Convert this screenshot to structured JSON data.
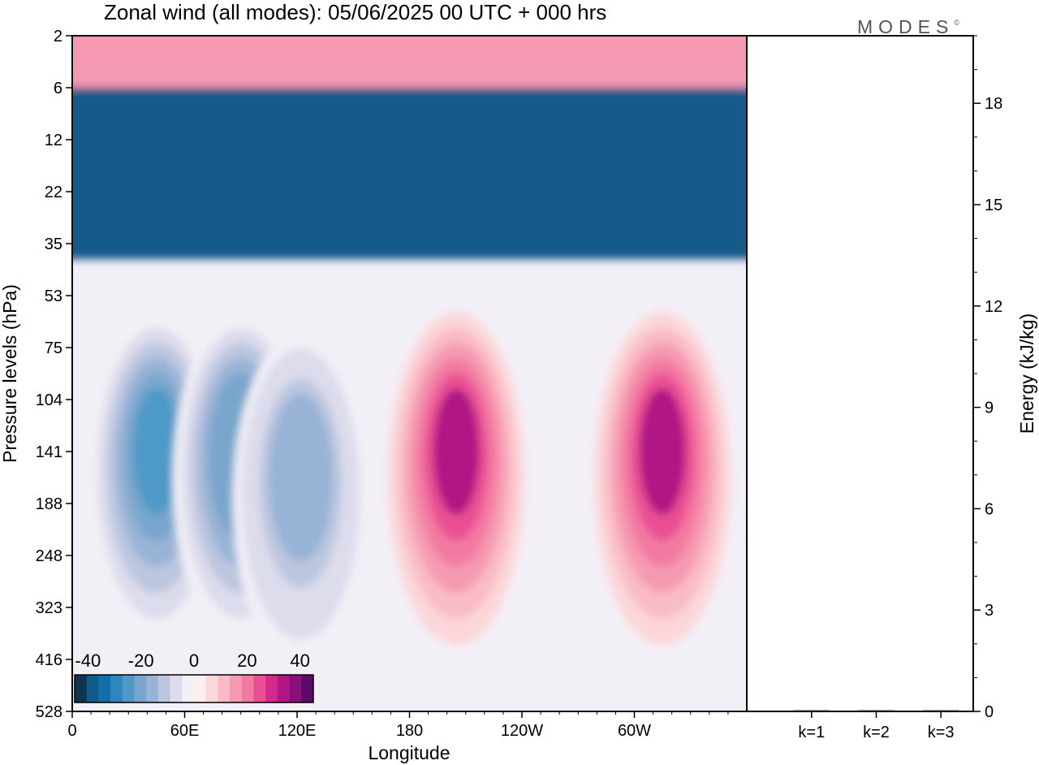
{
  "logo": {
    "text": "MODES",
    "mark": "©"
  },
  "chart_data": [
    {
      "type": "heatmap",
      "title": "Zonal wind (all modes):  05/06/2025  00 UTC  + 000 hrs",
      "xlabel": "Longitude",
      "ylabel": "Pressure levels (hPa)",
      "x_ticks": [
        "0",
        "60E",
        "120E",
        "180",
        "120W",
        "60W"
      ],
      "x_tick_values": [
        0,
        60,
        120,
        180,
        240,
        300
      ],
      "xlim": [
        0,
        360
      ],
      "y_ticks": [
        "2",
        "6",
        "12",
        "22",
        "35",
        "53",
        "75",
        "104",
        "141",
        "188",
        "248",
        "323",
        "416",
        "528"
      ],
      "y_scale": "categorical levels, 2 hPa at top",
      "colorbar": {
        "ticks": [
          "-40",
          "-20",
          "0",
          "20",
          "40"
        ],
        "range": [
          -45,
          45
        ],
        "colors": [
          "#10344f",
          "#125a8a",
          "#1470a8",
          "#2f86be",
          "#4d99c8",
          "#78a6cc",
          "#98b3d6",
          "#bcc6df",
          "#dcdcec",
          "#f2eff6",
          "#fdeeee",
          "#fbd7d9",
          "#f9bcc6",
          "#f59ab2",
          "#f27aa2",
          "#ea4f93",
          "#d22a8a",
          "#b01684",
          "#8a0f7a",
          "#5c0a6a"
        ]
      },
      "features": [
        {
          "name": "easterly jet band",
          "lon_range": [
            0,
            360
          ],
          "levels": "6-30 hPa",
          "value": -38
        },
        {
          "name": "westerly band aloft",
          "lon_range": [
            0,
            360
          ],
          "levels": "2-5 hPa",
          "value": 15
        },
        {
          "name": "easterly core",
          "lon": 45,
          "level": 141,
          "value": -25
        },
        {
          "name": "easterly core",
          "lon": 90,
          "level": 141,
          "value": -22
        },
        {
          "name": "easterly core",
          "lon": 122,
          "level": 160,
          "value": -18
        },
        {
          "name": "westerly core",
          "lon": 205,
          "level": 141,
          "value": 32
        },
        {
          "name": "westerly core",
          "lon": 315,
          "level": 141,
          "value": 32
        }
      ]
    },
    {
      "type": "bar",
      "ylabel": "Energy (kJ/kg)",
      "ylim": [
        0,
        20
      ],
      "y_ticks": [
        "0",
        "3",
        "6",
        "9",
        "12",
        "15",
        "18"
      ],
      "categories": [
        "k=1",
        "k=2",
        "k=3"
      ],
      "values": [
        0.03,
        0.02,
        0.02
      ]
    }
  ]
}
